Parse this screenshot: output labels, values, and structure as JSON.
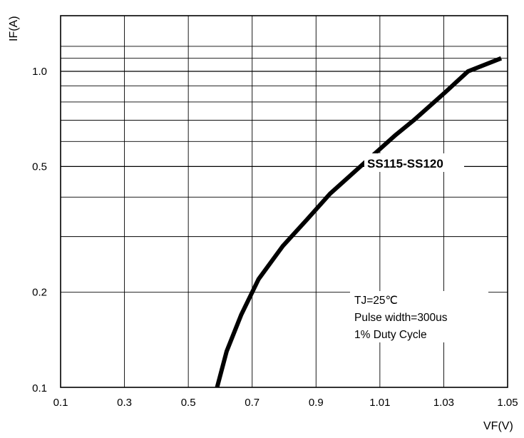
{
  "chart_data": {
    "type": "line",
    "title": "",
    "xlabel": "VF(V)",
    "ylabel": "IF(A)",
    "x_tick_labels": [
      "0.1",
      "0.3",
      "0.5",
      "0.7",
      "0.9",
      "1.01",
      "1.03",
      "1.05"
    ],
    "y_tick_labels": [
      "1.0",
      "0.5",
      "0.2",
      "0.1"
    ],
    "y_scale": "log",
    "grid": true,
    "series": [
      {
        "name": "SS115-SS120",
        "x_position_index": [
          2.45,
          2.6,
          2.83,
          3.1,
          3.48,
          3.86,
          4.22,
          4.79,
          5.25,
          5.53,
          6.0,
          6.38,
          6.9
        ],
        "y": [
          0.1,
          0.13,
          0.17,
          0.22,
          0.28,
          0.34,
          0.41,
          0.52,
          0.63,
          0.7,
          0.85,
          1.0,
          1.1
        ]
      }
    ],
    "annotations": [
      "TJ=25℃",
      "Pulse width=300us",
      "1% Duty Cycle"
    ],
    "colors": {
      "curve": "#000000",
      "grid": "#000000",
      "background": "#ffffff"
    }
  }
}
